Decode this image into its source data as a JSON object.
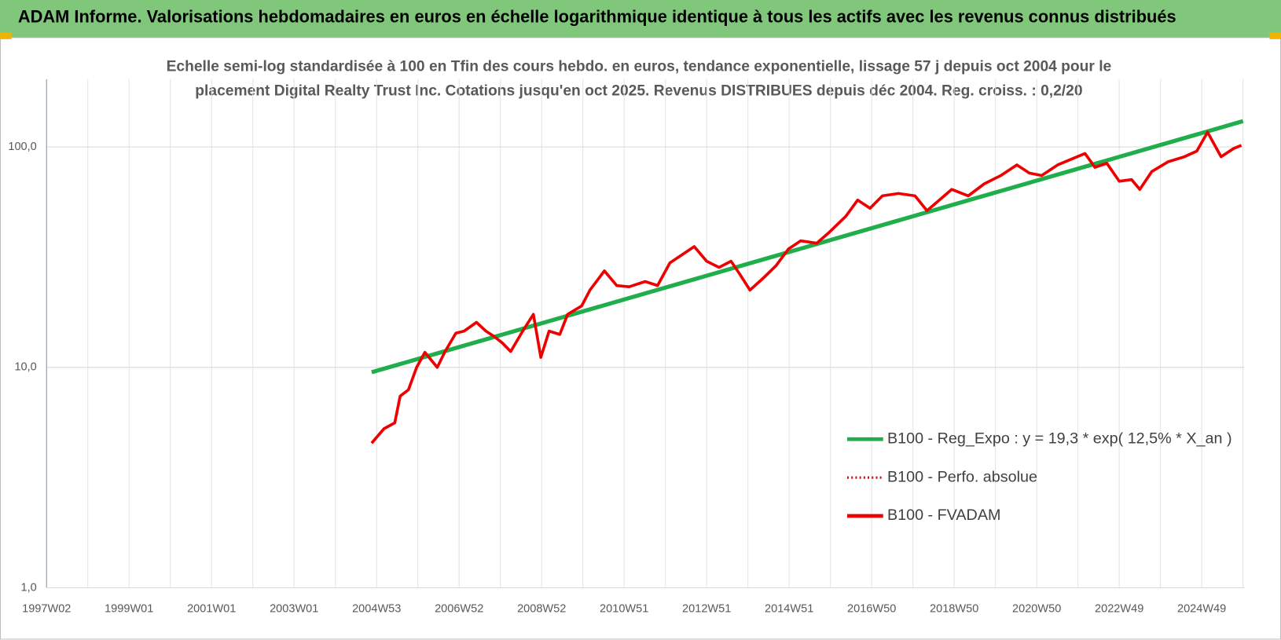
{
  "header": {
    "title": "ADAM Informe. Valorisations hebdomadaires en euros en échelle logarithmique identique à tous les actifs avec les revenus connus distribués"
  },
  "chart_data": {
    "type": "line",
    "title": [
      "Echelle semi-log standardisée à 100 en Tfin des cours hebdo. en euros, tendance exponentielle, lissage 57 j depuis oct 2004 pour le",
      "placement Digital Realty Trust Inc. Cotations jusqu'en oct 2025. Revenus DISTRIBUES depuis déc 2004. Reg. croiss. : 0,2/20"
    ],
    "log_y": true,
    "grid": true,
    "minor_x_grid": true,
    "legend": "lower right",
    "xlim": [
      1997.0,
      2026.03
    ],
    "ylim": [
      1,
      203
    ],
    "yticks": [
      {
        "value": 1,
        "label": "1,0"
      },
      {
        "value": 10,
        "label": "10,0"
      },
      {
        "value": 100,
        "label": "100,0"
      }
    ],
    "xticks": [
      {
        "value": 1997,
        "label": "1997W02"
      },
      {
        "value": 1999,
        "label": "1999W01"
      },
      {
        "value": 2001,
        "label": "2001W01"
      },
      {
        "value": 2003,
        "label": "2003W01"
      },
      {
        "value": 2005,
        "label": "2004W53"
      },
      {
        "value": 2007,
        "label": "2006W52"
      },
      {
        "value": 2009,
        "label": "2008W52"
      },
      {
        "value": 2011,
        "label": "2010W51"
      },
      {
        "value": 2013,
        "label": "2012W51"
      },
      {
        "value": 2015,
        "label": "2014W51"
      },
      {
        "value": 2017,
        "label": "2016W50"
      },
      {
        "value": 2019,
        "label": "2018W50"
      },
      {
        "value": 2021,
        "label": "2020W50"
      },
      {
        "value": 2023,
        "label": "2022W49"
      },
      {
        "value": 2025,
        "label": "2024W49"
      }
    ],
    "series": [
      {
        "name": "B100 - Reg_Expo : y = 19,3 * exp( 12,5% *  X_an )",
        "color": "#1fae4b",
        "style": "solid",
        "x": [
          2004.88,
          2026.0
        ],
        "values": [
          9.5,
          131
        ]
      },
      {
        "name": "B100 - Perfo. absolue",
        "color": "#e01010",
        "style": "dotted",
        "x": [],
        "values": []
      },
      {
        "name": "B100 - FVADAM",
        "color": "#ee0000",
        "style": "solid",
        "x": [
          2004.88,
          2005.18,
          2005.44,
          2005.57,
          2005.77,
          2005.97,
          2006.17,
          2006.47,
          2006.66,
          2006.92,
          2007.12,
          2007.42,
          2007.65,
          2007.85,
          2008.05,
          2008.25,
          2008.54,
          2008.8,
          2008.98,
          2009.18,
          2009.44,
          2009.63,
          2009.97,
          2010.17,
          2010.52,
          2010.82,
          2011.12,
          2011.51,
          2011.81,
          2012.11,
          2012.7,
          2013.0,
          2013.3,
          2013.59,
          2013.79,
          2014.05,
          2014.39,
          2014.68,
          2014.98,
          2015.28,
          2015.67,
          2015.97,
          2016.37,
          2016.66,
          2016.96,
          2017.26,
          2017.65,
          2018.05,
          2018.34,
          2018.64,
          2018.94,
          2019.34,
          2019.73,
          2020.13,
          2020.52,
          2020.82,
          2021.12,
          2021.51,
          2022.17,
          2022.41,
          2022.7,
          2023.0,
          2023.3,
          2023.5,
          2023.79,
          2024.19,
          2024.58,
          2024.88,
          2025.14,
          2025.47,
          2025.77,
          2025.96
        ],
        "values": [
          4.53,
          5.27,
          5.6,
          7.4,
          7.9,
          10,
          11.7,
          10,
          11.8,
          14.3,
          14.6,
          16,
          14.6,
          13.8,
          12.9,
          11.8,
          14.6,
          17.4,
          11.1,
          14.6,
          14.1,
          17.4,
          19,
          22.4,
          27.4,
          23.5,
          23.2,
          24.5,
          23.5,
          29.8,
          35.3,
          30.3,
          28.4,
          30.3,
          26.7,
          22.4,
          25.6,
          28.9,
          34.4,
          37.5,
          36.6,
          41,
          48.4,
          57.4,
          52.7,
          60,
          61.5,
          60,
          51.4,
          57.4,
          64.2,
          60,
          68.1,
          74.2,
          82.9,
          76.1,
          74.2,
          82.9,
          93.4,
          80.8,
          84.3,
          69.9,
          71.1,
          64.2,
          77.4,
          85.8,
          90.3,
          95.8,
          116.6,
          90.3,
          98.3,
          101.7
        ]
      }
    ]
  }
}
